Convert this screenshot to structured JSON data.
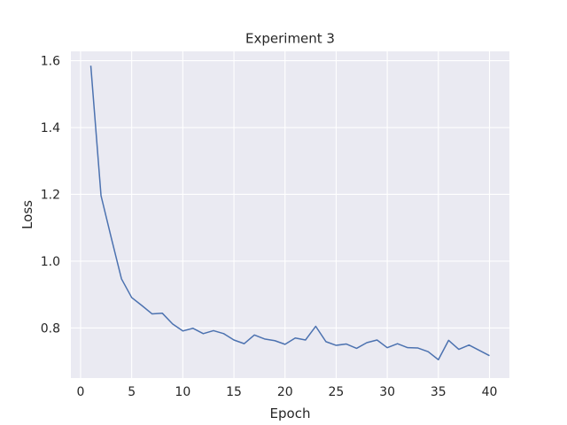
{
  "chart_data": {
    "type": "line",
    "title": "Experiment 3",
    "xlabel": "Epoch",
    "ylabel": "Loss",
    "xlim": [
      -0.95,
      41.95
    ],
    "ylim": [
      0.65,
      1.628
    ],
    "xticks": [
      0,
      5,
      10,
      15,
      20,
      25,
      30,
      35,
      40
    ],
    "yticks": [
      0.8,
      1.0,
      1.2,
      1.4,
      1.6
    ],
    "ytick_labels": [
      "0.8",
      "1.0",
      "1.2",
      "1.4",
      "1.6"
    ],
    "grid": true,
    "legend": "none",
    "colors": {
      "background": "#eaeaf2",
      "grid": "#ffffff",
      "line": "#4c72b0"
    },
    "series": [
      {
        "x": [
          1,
          2,
          3,
          4,
          5,
          6,
          7,
          8,
          9,
          10,
          11,
          12,
          13,
          14,
          15,
          16,
          17,
          18,
          19,
          20,
          21,
          22,
          23,
          24,
          25,
          26,
          27,
          28,
          29,
          30,
          31,
          32,
          33,
          34,
          35,
          36,
          37,
          38,
          39,
          40
        ],
        "values": [
          1.585,
          1.196,
          1.07,
          0.947,
          0.891,
          0.867,
          0.842,
          0.844,
          0.812,
          0.791,
          0.799,
          0.783,
          0.792,
          0.783,
          0.764,
          0.753,
          0.779,
          0.767,
          0.762,
          0.751,
          0.77,
          0.764,
          0.805,
          0.759,
          0.748,
          0.752,
          0.739,
          0.756,
          0.764,
          0.741,
          0.753,
          0.741,
          0.74,
          0.729,
          0.705,
          0.763,
          0.736,
          0.749,
          0.733,
          0.717
        ]
      }
    ]
  }
}
